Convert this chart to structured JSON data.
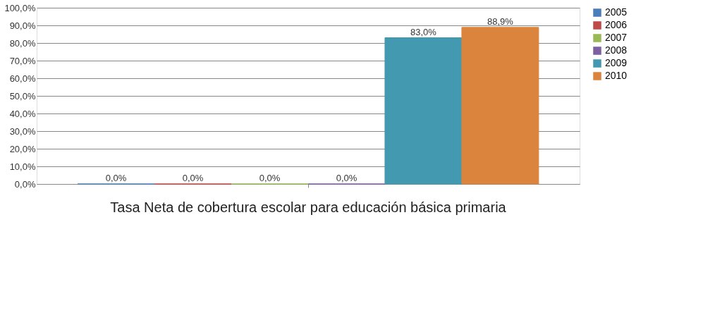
{
  "chart_data": {
    "type": "bar",
    "categories": [
      "Tasa Neta de cobertura escolar para educación básica primaria"
    ],
    "series": [
      {
        "name": "2005",
        "color": "#4a7ebb",
        "values": [
          0.0
        ],
        "value_labels": [
          "0,0%"
        ]
      },
      {
        "name": "2006",
        "color": "#be4b48",
        "values": [
          0.0
        ],
        "value_labels": [
          "0,0%"
        ]
      },
      {
        "name": "2007",
        "color": "#98b954",
        "values": [
          0.0
        ],
        "value_labels": [
          "0,0%"
        ]
      },
      {
        "name": "2008",
        "color": "#7d60a0",
        "values": [
          0.0
        ],
        "value_labels": [
          "0,0%"
        ]
      },
      {
        "name": "2009",
        "color": "#4299b0",
        "values": [
          83.0
        ],
        "value_labels": [
          "83,0%"
        ]
      },
      {
        "name": "2010",
        "color": "#db843d",
        "values": [
          88.9
        ],
        "value_labels": [
          "88,9%"
        ]
      }
    ],
    "ylim": [
      0,
      100
    ],
    "yticks": [
      {
        "value": 0,
        "label": "0,0%"
      },
      {
        "value": 10,
        "label": "10,0%"
      },
      {
        "value": 20,
        "label": "20,0%"
      },
      {
        "value": 30,
        "label": "30,0%"
      },
      {
        "value": 40,
        "label": "40,0%"
      },
      {
        "value": 50,
        "label": "50,0%"
      },
      {
        "value": 60,
        "label": "60,0%"
      },
      {
        "value": 70,
        "label": "70,0%"
      },
      {
        "value": 80,
        "label": "80,0%"
      },
      {
        "value": 90,
        "label": "90,0%"
      },
      {
        "value": 100,
        "label": "100,0%"
      }
    ],
    "grid": "y",
    "legend": "right"
  }
}
